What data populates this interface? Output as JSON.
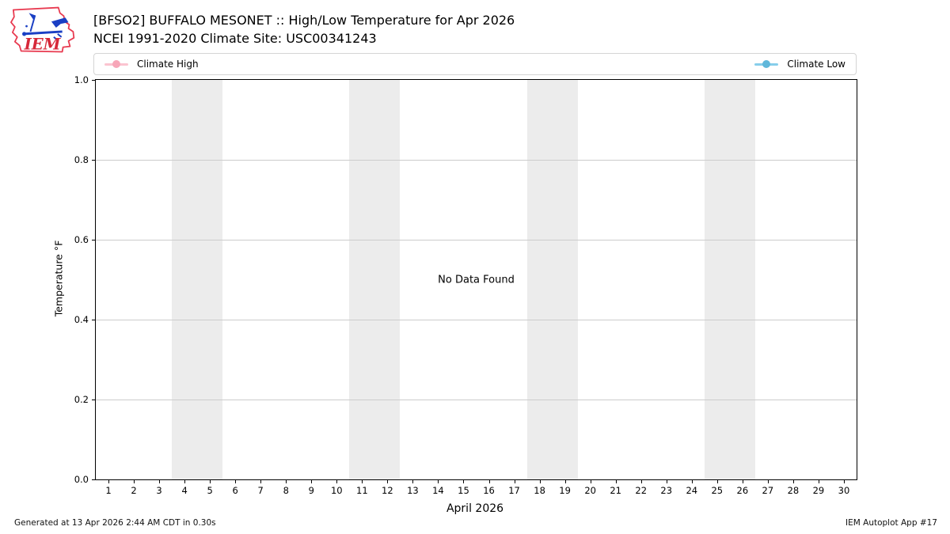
{
  "header": {
    "logo_text": "IEM"
  },
  "legend": {
    "items": [
      {
        "label": "Climate High",
        "line_color": "#fbc4d0",
        "marker_color": "#f7a6b8"
      },
      {
        "label": "Climate Low",
        "line_color": "#87ceeb",
        "marker_color": "#5fb7da"
      }
    ]
  },
  "chart_data": {
    "type": "line",
    "title": "[BFSO2] BUFFALO MESONET :: High/Low Temperature for Apr 2026",
    "subtitle": "NCEI 1991-2020 Climate Site: USC00341243",
    "xlabel": "April 2026",
    "ylabel": "Temperature °F",
    "x_ticks": [
      1,
      2,
      3,
      4,
      5,
      6,
      7,
      8,
      9,
      10,
      11,
      12,
      13,
      14,
      15,
      16,
      17,
      18,
      19,
      20,
      21,
      22,
      23,
      24,
      25,
      26,
      27,
      28,
      29,
      30
    ],
    "xlim": [
      0.5,
      30.5
    ],
    "y_ticks": [
      "0.0",
      "0.2",
      "0.4",
      "0.6",
      "0.8",
      "1.0"
    ],
    "ylim": [
      0.0,
      1.0
    ],
    "grid": "horizontal",
    "gridline_color": "#cccccc",
    "legend_position": "top",
    "series": [
      {
        "name": "Climate High",
        "color": "#fbc4d0",
        "values": []
      },
      {
        "name": "Climate Low",
        "color": "#87ceeb",
        "values": []
      }
    ],
    "no_data_message": "No Data Found",
    "weekend_shading_days": [
      [
        4,
        5
      ],
      [
        11,
        12
      ],
      [
        18,
        19
      ],
      [
        25,
        26
      ]
    ],
    "band_color": "#ececec"
  },
  "footer": {
    "generated": "Generated at 13 Apr 2026 2:44 AM CDT in 0.30s",
    "app_label": "IEM Autoplot App #17"
  }
}
